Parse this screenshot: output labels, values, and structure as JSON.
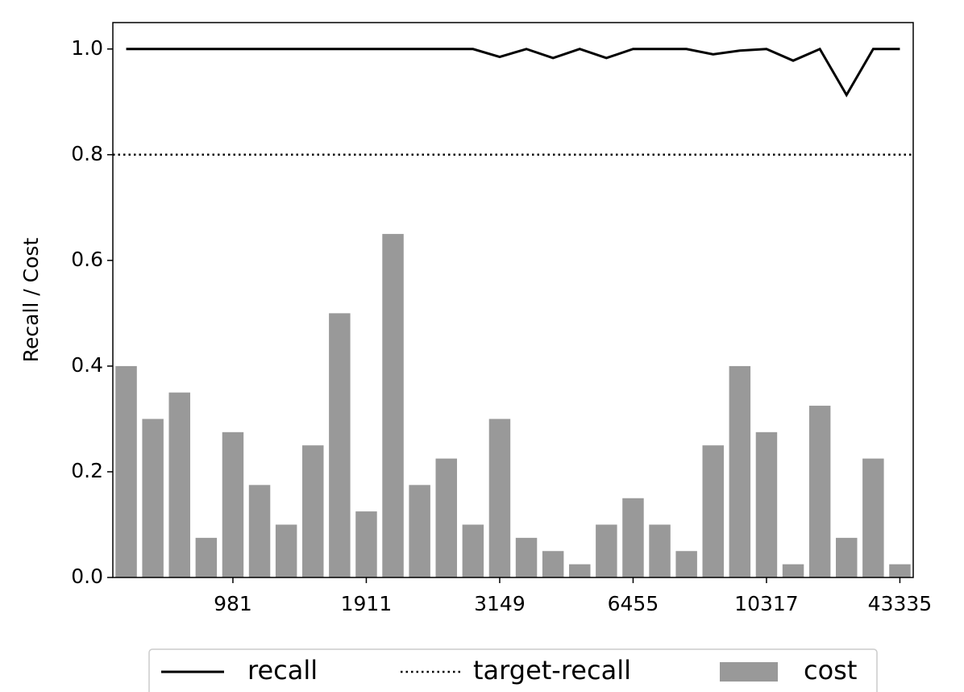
{
  "chart_data": {
    "type": "bar_line",
    "y_label": "Recall / Cost",
    "categories": [
      null,
      null,
      null,
      null,
      "981",
      null,
      null,
      null,
      null,
      "1911",
      null,
      null,
      null,
      null,
      "3149",
      null,
      null,
      null,
      null,
      "6455",
      null,
      null,
      null,
      null,
      "10317",
      null,
      null,
      null,
      null,
      "43335"
    ],
    "series": [
      {
        "name": "recall",
        "type": "line",
        "color": "#000000",
        "values": [
          1.0,
          1.0,
          1.0,
          1.0,
          1.0,
          1.0,
          1.0,
          1.0,
          1.0,
          1.0,
          1.0,
          1.0,
          1.0,
          1.0,
          0.985,
          1.0,
          0.983,
          1.0,
          0.983,
          1.0,
          1.0,
          1.0,
          0.99,
          0.997,
          1.0,
          0.978,
          1.0,
          0.913,
          1.0,
          1.0
        ]
      },
      {
        "name": "target-recall",
        "type": "hline",
        "color": "#000000",
        "value": 0.8
      },
      {
        "name": "cost",
        "type": "bar",
        "color": "#999999",
        "values": [
          0.4,
          0.3,
          0.35,
          0.075,
          0.275,
          0.175,
          0.1,
          0.25,
          0.5,
          0.125,
          0.65,
          0.175,
          0.225,
          0.1,
          0.3,
          0.075,
          0.05,
          0.025,
          0.1,
          0.15,
          0.1,
          0.05,
          0.25,
          0.4,
          0.275,
          0.025,
          0.325,
          0.075,
          0.225,
          0.025
        ]
      }
    ],
    "ylim": [
      0,
      1.05
    ],
    "yticks": [
      {
        "value": 0,
        "label": "0.0"
      },
      0.2,
      0.4,
      0.6,
      0.8,
      {
        "value": 1,
        "label": "1.0"
      }
    ],
    "legend": "bottom"
  }
}
